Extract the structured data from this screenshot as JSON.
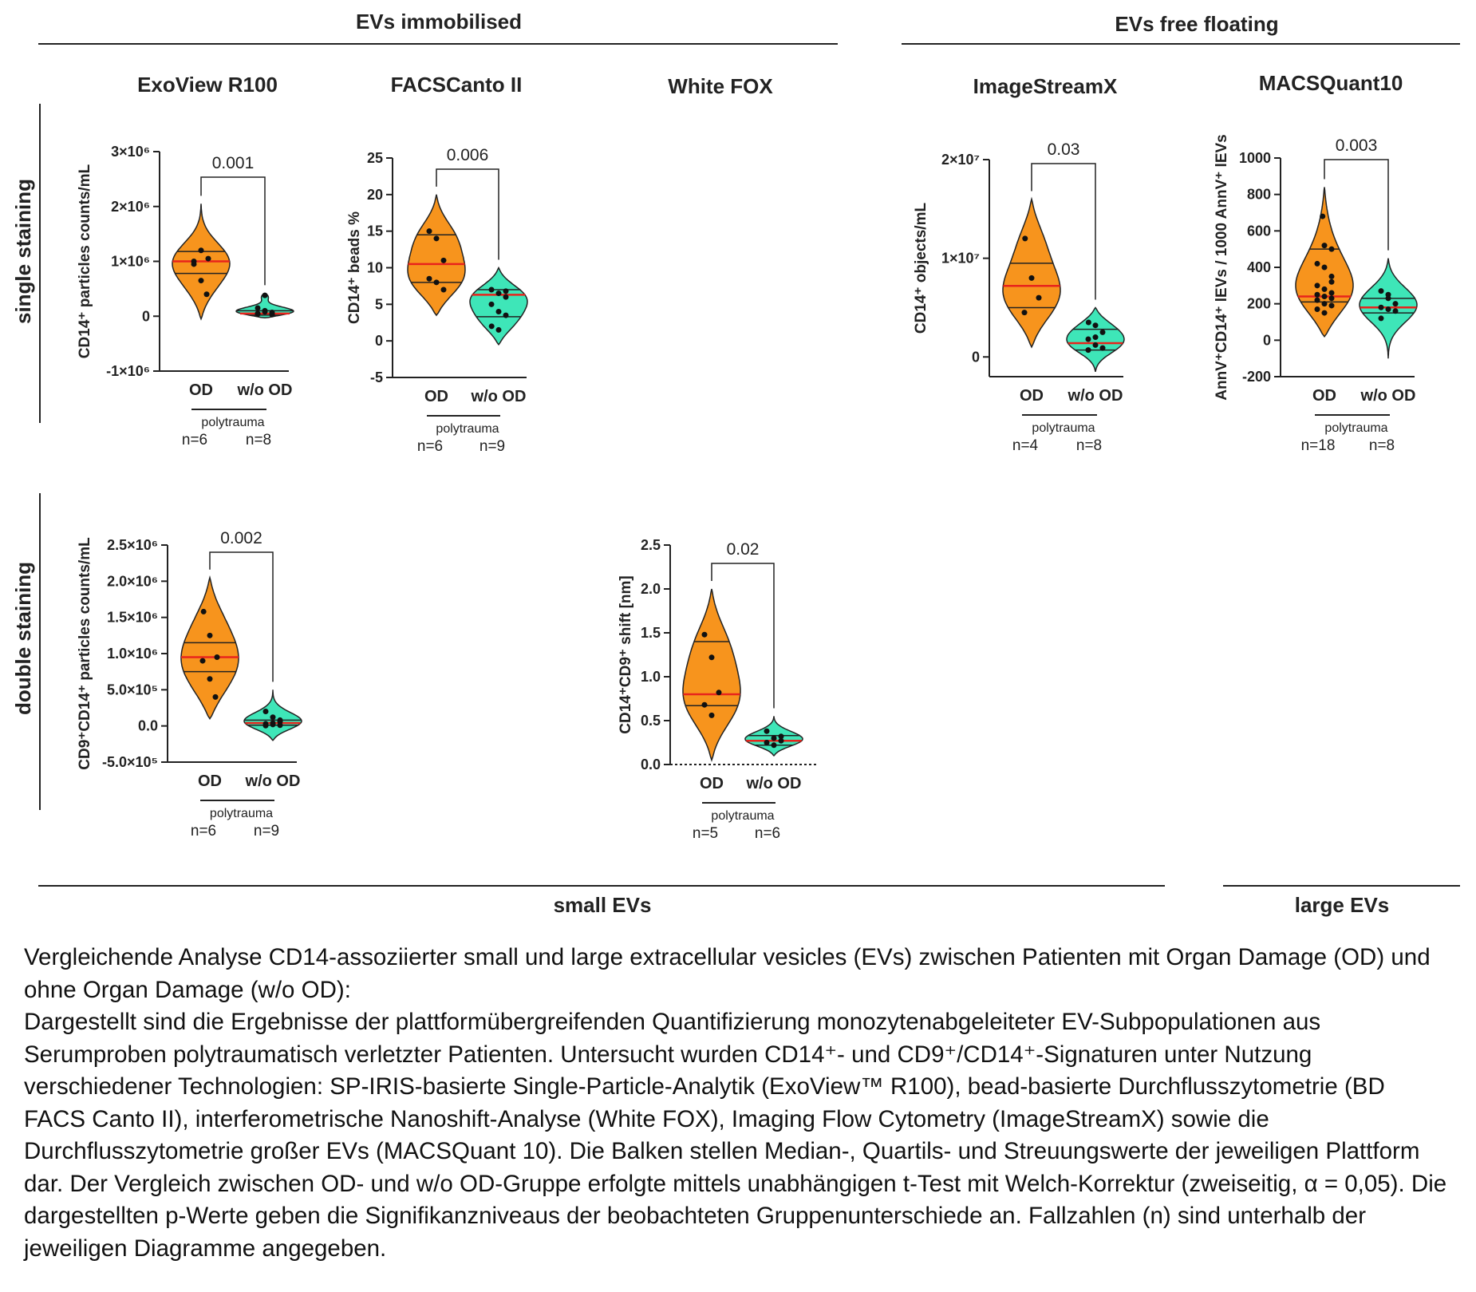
{
  "header": {
    "immobilised": "EVs immobilised",
    "free_floating": "EVs free floating",
    "small": "small EVs",
    "large": "large EVs"
  },
  "rows": {
    "single": "single staining",
    "double": "double staining"
  },
  "platforms": {
    "exoview": "ExoView R100",
    "facs": "FACSCanto II",
    "whitefox": "White FOX",
    "imagestream": "ImageStreamX",
    "macs": "MACSQuant10"
  },
  "colors": {
    "od": "#f7941d",
    "wo": "#3ee6b8",
    "median": "#e8241c",
    "line": "#222222"
  },
  "chart_data": [
    {
      "id": "exo_single",
      "type": "violin",
      "platform": "ExoView R100",
      "staining": "single staining",
      "ylabel": "CD14⁺ particles counts/mL",
      "ylim": [
        -1000000,
        3000000
      ],
      "yticks": [
        -1000000,
        0,
        1000000,
        2000000,
        3000000
      ],
      "yticklabels": [
        "-1×10⁶",
        "0",
        "1×10⁶",
        "2×10⁶",
        "3×10⁶"
      ],
      "categories": [
        "OD",
        "w/o OD"
      ],
      "group": "polytrauma",
      "n_labels": [
        "n=6",
        "n=8"
      ],
      "p_value": "0.001",
      "series": [
        {
          "points": [
            1000000,
            1200000,
            1050000,
            950000,
            650000,
            400000
          ],
          "median": 1000000,
          "q1": 780000,
          "q3": 1180000,
          "min": -50000,
          "max": 2050000
        },
        {
          "points": [
            50000,
            100000,
            70000,
            40000,
            80000,
            30000,
            150000,
            380000
          ],
          "median": 50000,
          "q1": 20000,
          "q3": 100000,
          "min": -30000,
          "max": 420000
        }
      ]
    },
    {
      "id": "facs_single",
      "type": "violin",
      "platform": "FACSCanto II",
      "staining": "single staining",
      "ylabel": "CD14⁺ beads %",
      "ylim": [
        -5,
        25
      ],
      "yticks": [
        -5,
        0,
        5,
        10,
        15,
        20,
        25
      ],
      "yticklabels": [
        "-5",
        "0",
        "5",
        "10",
        "15",
        "20",
        "25"
      ],
      "categories": [
        "OD",
        "w/o OD"
      ],
      "group": "polytrauma",
      "n_labels": [
        "n=6",
        "n=9"
      ],
      "p_value": "0.006",
      "series": [
        {
          "points": [
            15,
            14,
            11,
            8.5,
            8,
            7
          ],
          "median": 10.5,
          "q1": 8,
          "q3": 14.5,
          "min": 3.5,
          "max": 20
        },
        {
          "points": [
            7,
            6.5,
            6,
            5,
            4,
            3.5,
            2,
            1.5,
            6.8
          ],
          "median": 6.3,
          "q1": 3.3,
          "q3": 7,
          "min": -0.5,
          "max": 10
        }
      ]
    },
    {
      "id": "isx_single",
      "type": "violin",
      "platform": "ImageStreamX",
      "staining": "single staining",
      "ylabel": "CD14⁺ objects/mL",
      "ylim": [
        -2000000,
        20000000
      ],
      "yticks": [
        0,
        10000000,
        20000000
      ],
      "yticklabels": [
        "0",
        "1×10⁷",
        "2×10⁷"
      ],
      "categories": [
        "OD",
        "w/o OD"
      ],
      "group": "polytrauma",
      "n_labels": [
        "n=4",
        "n=8"
      ],
      "p_value": "0.03",
      "series": [
        {
          "points": [
            12000000,
            8000000,
            6000000,
            4500000
          ],
          "median": 7200000,
          "q1": 5000000,
          "q3": 9500000,
          "min": 1000000,
          "max": 16000000
        },
        {
          "points": [
            3500000,
            3200000,
            2500000,
            1800000,
            1200000,
            900000,
            700000,
            2000000
          ],
          "median": 1400000,
          "q1": 700000,
          "q3": 2800000,
          "min": -1500000,
          "max": 5000000
        }
      ]
    },
    {
      "id": "macs_single",
      "type": "violin",
      "platform": "MACSQuant10",
      "staining": "single staining",
      "ylabel": "AnnV⁺CD14⁺ lEVs / 1000  AnnV⁺ lEVs",
      "ylim": [
        -200,
        1000
      ],
      "yticks": [
        -200,
        0,
        200,
        400,
        600,
        800,
        1000
      ],
      "yticklabels": [
        "-200",
        "0",
        "200",
        "400",
        "600",
        "800",
        "1000"
      ],
      "categories": [
        "OD",
        "w/o OD"
      ],
      "group": "polytrauma",
      "n_labels": [
        "n=18",
        "n=8"
      ],
      "p_value": "0.003",
      "series": [
        {
          "points": [
            680,
            520,
            500,
            420,
            400,
            320,
            300,
            280,
            260,
            250,
            240,
            230,
            220,
            200,
            190,
            170,
            150,
            350
          ],
          "median": 240,
          "q1": 210,
          "q3": 500,
          "min": 20,
          "max": 840
        },
        {
          "points": [
            270,
            230,
            200,
            180,
            170,
            160,
            120,
            250
          ],
          "median": 180,
          "q1": 150,
          "q3": 230,
          "min": -100,
          "max": 450
        }
      ]
    },
    {
      "id": "exo_double",
      "type": "violin",
      "platform": "ExoView R100",
      "staining": "double staining",
      "ylabel": "CD9⁺CD14⁺ particles counts/mL",
      "ylim": [
        -500000,
        2500000
      ],
      "yticks": [
        -500000,
        0,
        500000,
        1000000,
        1500000,
        2000000,
        2500000
      ],
      "yticklabels": [
        "-5.0×10⁵",
        "0.0",
        "5.0×10⁵",
        "1.0×10⁶",
        "1.5×10⁶",
        "2.0×10⁶",
        "2.5×10⁶"
      ],
      "categories": [
        "OD",
        "w/o OD"
      ],
      "group": "polytrauma",
      "n_labels": [
        "n=6",
        "n=9"
      ],
      "p_value": "0.002",
      "series": [
        {
          "points": [
            1580000,
            1250000,
            950000,
            900000,
            650000,
            400000
          ],
          "median": 950000,
          "q1": 750000,
          "q3": 1150000,
          "min": 100000,
          "max": 2050000
        },
        {
          "points": [
            200000,
            120000,
            60000,
            30000,
            20000,
            10000,
            5000,
            40000,
            80000
          ],
          "median": 40000,
          "q1": 10000,
          "q3": 80000,
          "min": -200000,
          "max": 500000
        }
      ]
    },
    {
      "id": "wfox_double",
      "type": "violin",
      "platform": "White FOX",
      "staining": "double staining",
      "ylabel": "CD14⁺CD9⁺ shift [nm]",
      "ylim": [
        0,
        2.5
      ],
      "yticks": [
        0,
        0.5,
        1.0,
        1.5,
        2.0,
        2.5
      ],
      "yticklabels": [
        "0.0",
        "0.5",
        "1.0",
        "1.5",
        "2.0",
        "2.5"
      ],
      "categories": [
        "OD",
        "w/o OD"
      ],
      "group": "polytrauma",
      "n_labels": [
        "n=5",
        "n=6"
      ],
      "p_value": "0.02",
      "series": [
        {
          "points": [
            1.48,
            1.22,
            0.82,
            0.68,
            0.56
          ],
          "median": 0.8,
          "q1": 0.67,
          "q3": 1.4,
          "min": 0.05,
          "max": 2.0
        },
        {
          "points": [
            0.38,
            0.3,
            0.27,
            0.25,
            0.22,
            0.32
          ],
          "median": 0.27,
          "q1": 0.22,
          "q3": 0.33,
          "min": 0.1,
          "max": 0.55
        }
      ]
    }
  ],
  "caption": {
    "p1": "Vergleichende Analyse CD14-assoziierter small und large extracellular vesicles (EVs) zwischen Patienten mit Organ Damage (OD) und ohne Organ Damage (w/o OD):",
    "p2": "Dargestellt sind die Ergebnisse der plattformübergreifenden Quantifizierung monozytenabgeleiteter EV-Subpopulationen aus Serumproben polytraumatisch verletzter Patienten. Untersucht wurden CD14⁺- und CD9⁺/CD14⁺-Signaturen unter Nutzung verschiedener Technologien: SP-IRIS-basierte Single-Particle-Analytik (ExoView™ R100), bead-basierte Durchflusszytometrie (BD FACS Canto II), interferometrische Nanoshift-Analyse (White FOX), Imaging Flow Cytometry (ImageStreamX) sowie die Durchflusszytometrie großer EVs (MACSQuant 10). Die Balken stellen Median-, Quartils- und Streuungswerte der jeweiligen Plattform dar. Der Vergleich zwischen OD- und w/o OD-Gruppe erfolgte mittels unabhängigen t-Test mit Welch-Korrektur (zweiseitig, α = 0,05). Die dargestellten p-Werte geben die Signifikanzniveaus der beobachteten Gruppenunterschiede an. Fallzahlen (n) sind unterhalb der jeweiligen Diagramme angegeben."
  }
}
